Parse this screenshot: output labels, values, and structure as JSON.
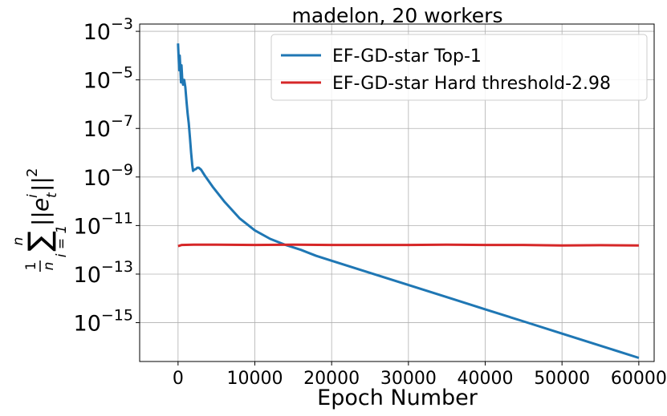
{
  "chart_data": {
    "type": "line",
    "title": "madelon, 20 workers",
    "xlabel": "Epoch Number",
    "ylabel": {
      "frac_num": "1",
      "frac_den": "n",
      "sum_sup": "n",
      "sum_sub": "i = 1",
      "sum_sign": "∑",
      "norm_open": "||",
      "var": "e",
      "var_sup": "i",
      "var_sub": "t",
      "norm_close": "||",
      "power": "2"
    },
    "xlim": [
      -5000,
      62000
    ],
    "ylim_log10": [
      -16.6,
      -2.7
    ],
    "y_scale": "log",
    "grid": true,
    "legend_position": "top-right",
    "x_ticks": [
      0,
      10000,
      20000,
      30000,
      40000,
      50000,
      60000
    ],
    "y_ticks": [
      {
        "base": "10",
        "exp": "−3",
        "log10": -3
      },
      {
        "base": "10",
        "exp": "−5",
        "log10": -5
      },
      {
        "base": "10",
        "exp": "−7",
        "log10": -7
      },
      {
        "base": "10",
        "exp": "−9",
        "log10": -9
      },
      {
        "base": "10",
        "exp": "−11",
        "log10": -11
      },
      {
        "base": "10",
        "exp": "−13",
        "log10": -13
      },
      {
        "base": "10",
        "exp": "−15",
        "log10": -15
      }
    ],
    "series": [
      {
        "name": "EF-GD-star Top-1",
        "color": "#1f77b4",
        "points": [
          [
            0,
            -3.5
          ],
          [
            80,
            -4.1
          ],
          [
            150,
            -4.6
          ],
          [
            220,
            -4.0
          ],
          [
            300,
            -4.5
          ],
          [
            380,
            -5.1
          ],
          [
            450,
            -4.4
          ],
          [
            550,
            -5.0
          ],
          [
            650,
            -5.2
          ],
          [
            800,
            -5.0
          ],
          [
            950,
            -5.3
          ],
          [
            1100,
            -5.9
          ],
          [
            1250,
            -6.4
          ],
          [
            1400,
            -6.8
          ],
          [
            1550,
            -7.4
          ],
          [
            1700,
            -8.0
          ],
          [
            1850,
            -8.5
          ],
          [
            1950,
            -8.75
          ],
          [
            2100,
            -8.7
          ],
          [
            2300,
            -8.68
          ],
          [
            2500,
            -8.62
          ],
          [
            2700,
            -8.62
          ],
          [
            3000,
            -8.7
          ],
          [
            3500,
            -8.95
          ],
          [
            4500,
            -9.4
          ],
          [
            6000,
            -10.0
          ],
          [
            8000,
            -10.7
          ],
          [
            10000,
            -11.2
          ],
          [
            12000,
            -11.55
          ],
          [
            14000,
            -11.8
          ],
          [
            16000,
            -12.0
          ],
          [
            18000,
            -12.25
          ],
          [
            20000,
            -12.45
          ],
          [
            25000,
            -12.95
          ],
          [
            30000,
            -13.45
          ],
          [
            35000,
            -13.95
          ],
          [
            40000,
            -14.45
          ],
          [
            45000,
            -14.95
          ],
          [
            50000,
            -15.45
          ],
          [
            55000,
            -15.95
          ],
          [
            60000,
            -16.45
          ]
        ]
      },
      {
        "name": "EF-GD-star Hard threshold-2.98",
        "color": "#d62728",
        "points": [
          [
            0,
            -11.85
          ],
          [
            500,
            -11.8
          ],
          [
            2000,
            -11.79
          ],
          [
            5000,
            -11.79
          ],
          [
            10000,
            -11.8
          ],
          [
            15000,
            -11.79
          ],
          [
            20000,
            -11.8
          ],
          [
            25000,
            -11.8
          ],
          [
            30000,
            -11.8
          ],
          [
            35000,
            -11.79
          ],
          [
            40000,
            -11.8
          ],
          [
            45000,
            -11.8
          ],
          [
            50000,
            -11.82
          ],
          [
            55000,
            -11.81
          ],
          [
            60000,
            -11.82
          ]
        ]
      }
    ]
  }
}
